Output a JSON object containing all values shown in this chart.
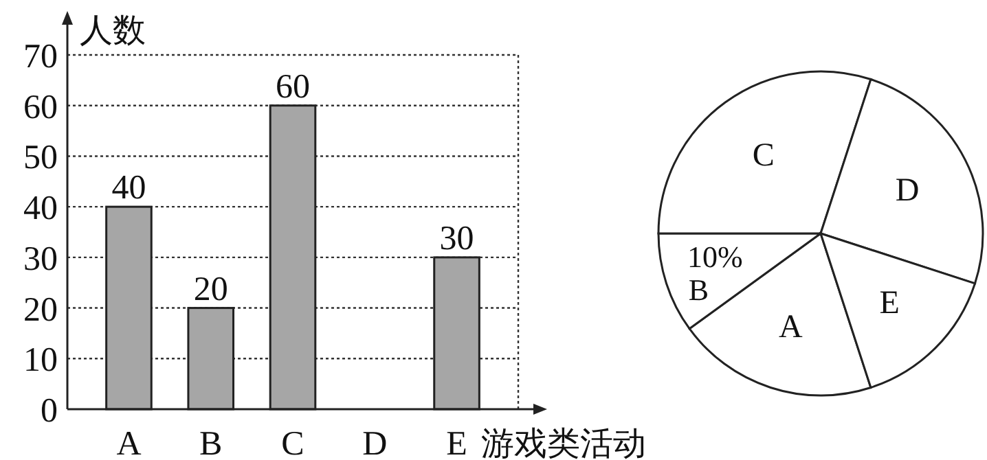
{
  "chart_data": [
    {
      "type": "bar",
      "categories": [
        "A",
        "B",
        "C",
        "D",
        "E"
      ],
      "values": [
        40,
        20,
        60,
        null,
        30
      ],
      "color": "#a6a6a6",
      "ylim": [
        0,
        70
      ],
      "yticks": [
        0,
        10,
        20,
        30,
        40,
        50,
        60,
        70
      ],
      "ylabel": "人数",
      "xlabel": "游戏类活动",
      "data_labels": true,
      "grid": "y"
    },
    {
      "type": "pie",
      "categories": [
        "A",
        "B",
        "C",
        "D",
        "E"
      ],
      "values": [
        20,
        10,
        30,
        25,
        15
      ],
      "colors": [
        "#ffffff",
        "#ffffff",
        "#ffffff",
        "#ffffff",
        "#ffffff"
      ],
      "value_labels": [
        null,
        "10%",
        null,
        null,
        null
      ]
    }
  ]
}
